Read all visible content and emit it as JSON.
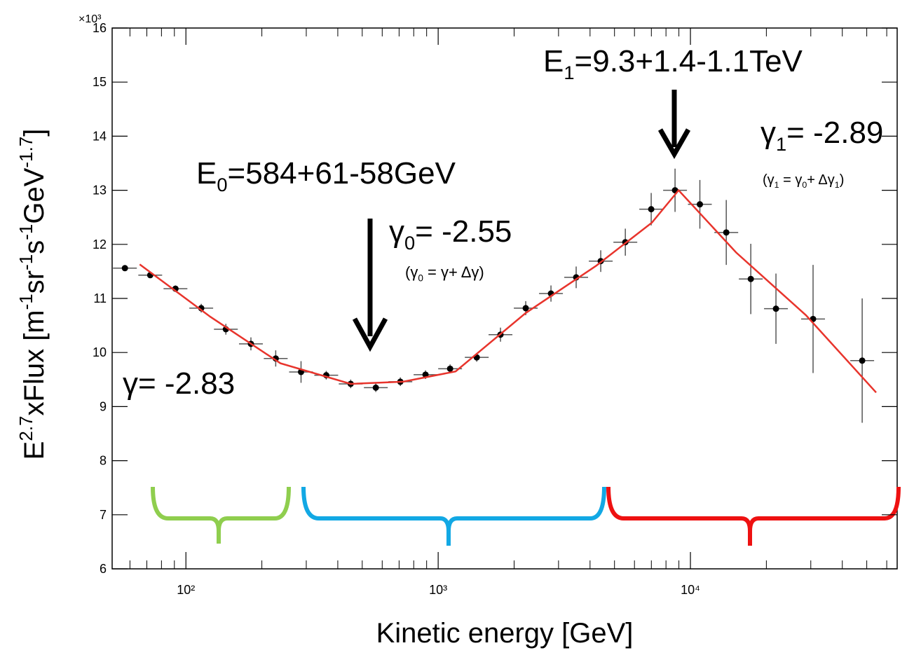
{
  "chart_data": {
    "type": "scatter",
    "x_label": "Kinetic energy [GeV]",
    "y_label_parts": [
      {
        "text": "E"
      },
      {
        "text": "2.7",
        "sup": true
      },
      {
        "text": "xFlux [m"
      },
      {
        "text": "-1",
        "sup": true
      },
      {
        "text": "sr"
      },
      {
        "text": "-1",
        "sup": true
      },
      {
        "text": "s"
      },
      {
        "text": "-1",
        "sup": true
      },
      {
        "text": "GeV"
      },
      {
        "text": "-1.7",
        "sup": true
      },
      {
        "text": "]"
      }
    ],
    "y_multiplier": "×10³",
    "xscale": "log",
    "xlim": [
      51,
      66000
    ],
    "xticks": [
      {
        "value": 100,
        "label": "10²"
      },
      {
        "value": 1000,
        "label": "10³"
      },
      {
        "value": 10000,
        "label": "10⁴"
      }
    ],
    "xminorticks": [
      60,
      70,
      80,
      90,
      200,
      300,
      400,
      500,
      600,
      700,
      800,
      900,
      2000,
      3000,
      4000,
      5000,
      6000,
      7000,
      8000,
      9000,
      20000,
      30000,
      40000,
      50000,
      60000
    ],
    "ylim": [
      6,
      16
    ],
    "yticks": [
      6,
      7,
      8,
      9,
      10,
      11,
      12,
      13,
      14,
      15,
      16
    ],
    "series": [
      {
        "name": "data",
        "color": "#000000",
        "x": [
          57.3,
          72.2,
          90.9,
          115,
          144,
          181,
          227,
          286,
          360,
          450,
          566,
          708,
          891,
          1115,
          1422,
          1766,
          2224,
          2800,
          3524,
          4410,
          5520,
          6990,
          8690,
          10900,
          13870,
          17350,
          21830,
          30630,
          47960
        ],
        "values": [
          11.56,
          11.43,
          11.18,
          10.82,
          10.43,
          10.16,
          9.89,
          9.64,
          9.58,
          9.42,
          9.35,
          9.46,
          9.59,
          9.7,
          9.91,
          10.33,
          10.82,
          11.09,
          11.39,
          11.69,
          12.04,
          12.65,
          13.0,
          12.74,
          12.22,
          11.36,
          10.81,
          10.62,
          9.85
        ],
        "errors": [
          0.03,
          0.05,
          0.06,
          0.08,
          0.1,
          0.12,
          0.15,
          0.2,
          0.08,
          0.08,
          0.08,
          0.08,
          0.08,
          0.08,
          0.08,
          0.13,
          0.13,
          0.15,
          0.2,
          0.2,
          0.25,
          0.3,
          0.4,
          0.45,
          0.6,
          0.65,
          0.65,
          1.0,
          1.15
        ]
      },
      {
        "name": "fit",
        "color": "#e8342c",
        "x": [
          65.6,
          125,
          237,
          450,
          726,
          1172,
          2224,
          4217,
          7030,
          8980,
          15170,
          28700,
          54460
        ],
        "values": [
          11.63,
          10.66,
          9.8,
          9.42,
          9.46,
          9.65,
          10.73,
          11.6,
          12.4,
          13.0,
          11.85,
          10.69,
          9.26
        ]
      }
    ],
    "annotations": [
      {
        "parts": [
          {
            "text": "E"
          },
          {
            "text": "0",
            "sub": true
          },
          {
            "text": "=584+61-58GeV"
          }
        ]
      },
      {
        "parts": [
          {
            "text": "γ"
          },
          {
            "text": "0",
            "sub": true
          },
          {
            "text": "= -2.55"
          }
        ]
      },
      {
        "parts": [
          {
            "text": "(γ"
          },
          {
            "text": "0",
            "sub": true
          },
          {
            "text": " = γ+ Δγ)"
          }
        ]
      },
      {
        "parts": [
          {
            "text": "E"
          },
          {
            "text": "1",
            "sub": true
          },
          {
            "text": "=9.3+1.4-1.1TeV"
          }
        ]
      },
      {
        "parts": [
          {
            "text": "γ"
          },
          {
            "text": "1",
            "sub": true
          },
          {
            "text": "= -2.89"
          }
        ]
      },
      {
        "parts": [
          {
            "text": "(γ"
          },
          {
            "text": "1",
            "sub": true
          },
          {
            "text": " = γ"
          },
          {
            "text": "0",
            "sub": true
          },
          {
            "text": "+ Δγ"
          },
          {
            "text": "1",
            "sub": true
          },
          {
            "text": ")"
          }
        ]
      },
      {
        "parts": [
          {
            "text": "γ= -2.83"
          }
        ]
      }
    ]
  }
}
